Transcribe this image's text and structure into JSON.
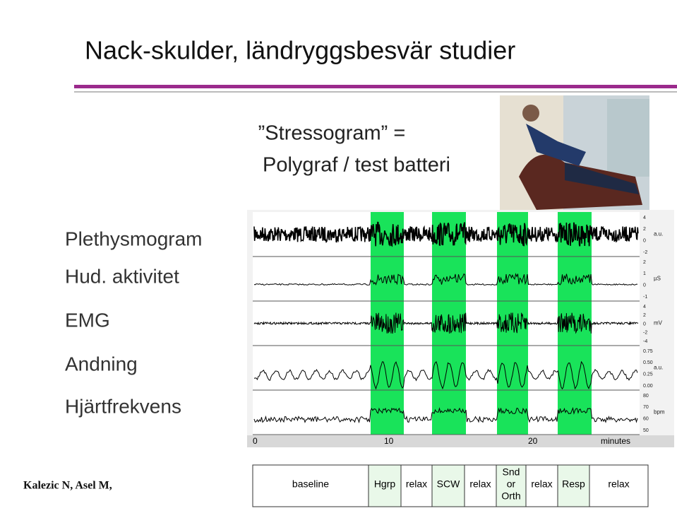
{
  "title": "Nack-skulder, ländryggsbesvär studier",
  "subtitle": [
    "”Stressogram” =",
    "Polygraf / test batteri"
  ],
  "channels": [
    {
      "label": "Plethysmogram",
      "scale": [
        "4",
        "2",
        "0",
        "-2"
      ],
      "unit": "a.u."
    },
    {
      "label": "Hud. aktivitet",
      "scale": [
        "2",
        "1",
        "0",
        "-1"
      ],
      "unit": "µS"
    },
    {
      "label": "EMG",
      "scale": [
        "4",
        "2",
        "0",
        "-2",
        "-4"
      ],
      "unit": "mV"
    },
    {
      "label": "Andning",
      "scale": [
        "0.75",
        "0.50",
        "0.25",
        "0.00"
      ],
      "unit": "a.u."
    },
    {
      "label": "Hjärtfrekvens",
      "scale": [
        "80",
        "70",
        "60",
        "50"
      ],
      "unit": "bpm"
    }
  ],
  "time_axis": {
    "ticks": [
      "0",
      "10",
      "20"
    ],
    "unit": "minutes"
  },
  "protocol": [
    [
      "baseline"
    ],
    [
      "Hgrp"
    ],
    [
      "relax"
    ],
    [
      "SCW"
    ],
    [
      "relax"
    ],
    [
      "Snd",
      "or",
      "Orth"
    ],
    [
      "relax"
    ],
    [
      "Resp"
    ],
    [
      "relax"
    ]
  ],
  "author": "Kalezic N, Asel M,"
}
